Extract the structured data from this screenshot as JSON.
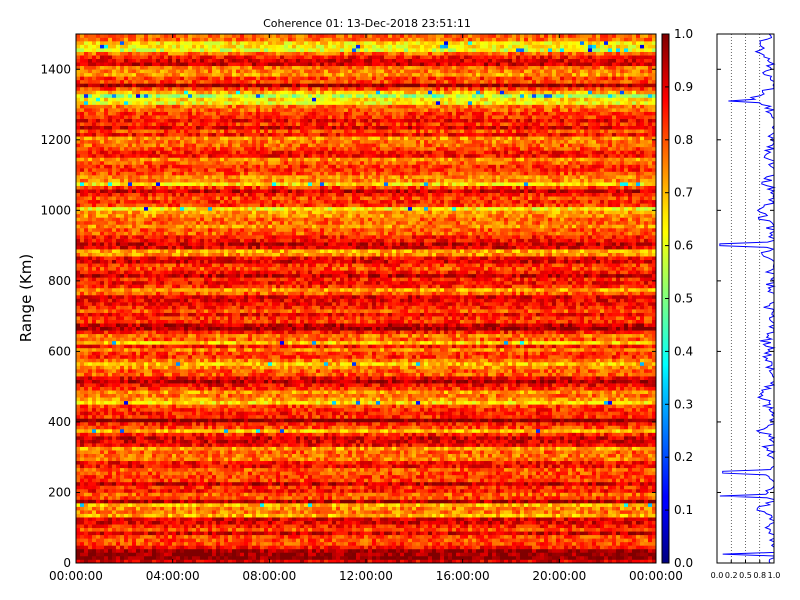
{
  "chart_data": [
    {
      "type": "heatmap",
      "title": "Coherence 01: 13-Dec-2018 23:51:11",
      "xlabel": "",
      "ylabel": "Range (Km)",
      "x_tick_labels": [
        "00:00:00",
        "04:00:00",
        "08:00:00",
        "12:00:00",
        "16:00:00",
        "20:00:00",
        "00:00:00"
      ],
      "x_range_hours": [
        0,
        24
      ],
      "y_ticks": [
        0,
        200,
        400,
        600,
        800,
        1000,
        1200,
        1400
      ],
      "ylim": [
        0,
        1500
      ],
      "colormap": "jet",
      "colorbar_ticks": [
        0.0,
        0.1,
        0.2,
        0.3,
        0.4,
        0.5,
        0.6,
        0.7,
        0.8,
        0.9,
        1.0
      ],
      "clim": [
        0,
        1
      ],
      "grid": false,
      "row_profile": [
        {
          "range": 0,
          "coherence": 0.86
        },
        {
          "range": 25,
          "coherence": 0.92
        },
        {
          "range": 50,
          "coherence": 0.84
        },
        {
          "range": 75,
          "coherence": 0.9
        },
        {
          "range": 100,
          "coherence": 0.82
        },
        {
          "range": 125,
          "coherence": 0.91
        },
        {
          "range": 150,
          "coherence": 0.6
        },
        {
          "range": 175,
          "coherence": 0.88
        },
        {
          "range": 200,
          "coherence": 0.78
        },
        {
          "range": 225,
          "coherence": 0.9
        },
        {
          "range": 250,
          "coherence": 0.8
        },
        {
          "range": 275,
          "coherence": 0.93
        },
        {
          "range": 300,
          "coherence": 0.83
        },
        {
          "range": 325,
          "coherence": 0.76
        },
        {
          "range": 350,
          "coherence": 0.9
        },
        {
          "range": 375,
          "coherence": 0.65
        },
        {
          "range": 400,
          "coherence": 0.92
        },
        {
          "range": 425,
          "coherence": 0.86
        },
        {
          "range": 450,
          "coherence": 0.74
        },
        {
          "range": 475,
          "coherence": 0.68
        },
        {
          "range": 500,
          "coherence": 0.82
        },
        {
          "range": 525,
          "coherence": 0.9
        },
        {
          "range": 550,
          "coherence": 0.79
        },
        {
          "range": 575,
          "coherence": 0.75
        },
        {
          "range": 600,
          "coherence": 0.83
        },
        {
          "range": 625,
          "coherence": 0.72
        },
        {
          "range": 650,
          "coherence": 0.78
        },
        {
          "range": 675,
          "coherence": 0.94
        },
        {
          "range": 700,
          "coherence": 0.86
        },
        {
          "range": 725,
          "coherence": 0.8
        },
        {
          "range": 750,
          "coherence": 0.88
        },
        {
          "range": 775,
          "coherence": 0.76
        },
        {
          "range": 800,
          "coherence": 0.9
        },
        {
          "range": 825,
          "coherence": 0.82
        },
        {
          "range": 850,
          "coherence": 0.88
        },
        {
          "range": 875,
          "coherence": 0.74
        },
        {
          "range": 900,
          "coherence": 0.86
        },
        {
          "range": 925,
          "coherence": 0.9
        },
        {
          "range": 950,
          "coherence": 0.84
        },
        {
          "range": 975,
          "coherence": 0.7
        },
        {
          "range": 1000,
          "coherence": 0.66
        },
        {
          "range": 1025,
          "coherence": 0.88
        },
        {
          "range": 1050,
          "coherence": 0.92
        },
        {
          "range": 1075,
          "coherence": 0.72
        },
        {
          "range": 1100,
          "coherence": 0.86
        },
        {
          "range": 1125,
          "coherence": 0.9
        },
        {
          "range": 1150,
          "coherence": 0.8
        },
        {
          "range": 1175,
          "coherence": 0.84
        },
        {
          "range": 1200,
          "coherence": 0.78
        },
        {
          "range": 1225,
          "coherence": 0.9
        },
        {
          "range": 1250,
          "coherence": 0.93
        },
        {
          "range": 1275,
          "coherence": 0.86
        },
        {
          "range": 1300,
          "coherence": 0.7
        },
        {
          "range": 1325,
          "coherence": 0.55
        },
        {
          "range": 1350,
          "coherence": 0.9
        },
        {
          "range": 1375,
          "coherence": 0.8
        },
        {
          "range": 1400,
          "coherence": 0.74
        },
        {
          "range": 1425,
          "coherence": 0.88
        },
        {
          "range": 1450,
          "coherence": 0.62
        },
        {
          "range": 1475,
          "coherence": 0.58
        },
        {
          "range": 1500,
          "coherence": 0.9
        }
      ]
    },
    {
      "type": "line",
      "title": "",
      "x_tick_labels": [
        "0.0",
        "0.2",
        "0.5",
        "0.8",
        "1.0"
      ],
      "x_ticks": [
        0.0,
        0.25,
        0.5,
        0.75,
        1.0
      ],
      "xlim": [
        0,
        1
      ],
      "ylim": [
        0,
        1500
      ],
      "grid": "vertical dotted",
      "series_color": "#0000ff",
      "spikes": [
        {
          "range": 25,
          "coherence": 0.1
        },
        {
          "range": 190,
          "coherence": 0.05
        },
        {
          "range": 258,
          "coherence": 0.1
        },
        {
          "range": 904,
          "coherence": 0.05
        },
        {
          "range": 1310,
          "coherence": 0.2
        }
      ]
    }
  ]
}
